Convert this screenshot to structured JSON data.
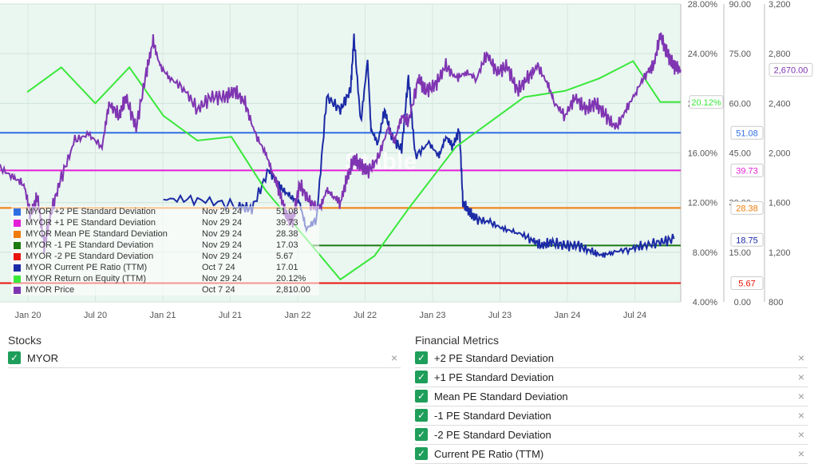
{
  "chart_data": {
    "type": "line",
    "x_ticks": [
      "Jan 20",
      "Jul 20",
      "Jan 21",
      "Jul 21",
      "Jan 22",
      "Jul 22",
      "Jan 23",
      "Jul 23",
      "Jan 24",
      "Jul 24"
    ],
    "axes": {
      "roe_pct": {
        "ticks": [
          "4.00%",
          "8.00%",
          "12.00%",
          "16.00%",
          "20.00%",
          "24.00%",
          "28.00%"
        ],
        "range": [
          4,
          28
        ]
      },
      "pe": {
        "ticks": [
          "0.00",
          "15.00",
          "30.00",
          "45.00",
          "60.00",
          "75.00",
          "90.00"
        ],
        "range": [
          0,
          90
        ]
      },
      "price": {
        "ticks": [
          "800",
          "1,200",
          "1,600",
          "2,000",
          "2,400",
          "2,800",
          "3,200"
        ],
        "range": [
          800,
          3200
        ]
      }
    },
    "series": [
      {
        "name": "MYOR +2 PE Standard Deviation",
        "color": "#2f6fe4",
        "axis": "pe",
        "date": "Nov 29 24",
        "value": "51.08",
        "flat": 51.08,
        "badge": "51.08"
      },
      {
        "name": "MYOR +1 PE Standard Deviation",
        "color": "#e41fd8",
        "axis": "pe",
        "date": "Nov 29 24",
        "value": "39.73",
        "flat": 39.73,
        "badge": "39.73"
      },
      {
        "name": "MYOR Mean PE Standard Deviation",
        "color": "#f07d0b",
        "axis": "pe",
        "date": "Nov 29 24",
        "value": "28.38",
        "flat": 28.38,
        "badge": "28.38"
      },
      {
        "name": "MYOR -1 PE Standard Deviation",
        "color": "#1b7a12",
        "axis": "pe",
        "date": "Nov 29 24",
        "value": "17.03",
        "flat": 17.03,
        "badge": ""
      },
      {
        "name": "MYOR -2 PE Standard Deviation",
        "color": "#e8130c",
        "axis": "pe",
        "date": "Nov 29 24",
        "value": "5.67",
        "flat": 5.67,
        "badge": "5.67"
      },
      {
        "name": "MYOR Current PE Ratio (TTM)",
        "color": "#1b2aa6",
        "axis": "pe",
        "date": "Oct 7 24",
        "value": "17.01",
        "badge": "18.75",
        "points": [
          [
            0.0,
            0
          ],
          [
            0.21,
            0
          ],
          [
            0.24,
            31
          ],
          [
            0.29,
            31
          ],
          [
            0.35,
            29
          ],
          [
            0.37,
            28
          ],
          [
            0.395,
            40
          ],
          [
            0.41,
            35
          ],
          [
            0.425,
            32
          ],
          [
            0.44,
            30
          ],
          [
            0.45,
            22
          ],
          [
            0.465,
            25
          ],
          [
            0.48,
            62
          ],
          [
            0.5,
            58
          ],
          [
            0.515,
            64
          ],
          [
            0.52,
            80
          ],
          [
            0.53,
            54
          ],
          [
            0.54,
            73
          ],
          [
            0.545,
            52
          ],
          [
            0.555,
            48
          ],
          [
            0.565,
            58
          ],
          [
            0.575,
            50
          ],
          [
            0.59,
            46
          ],
          [
            0.6,
            68
          ],
          [
            0.61,
            44
          ],
          [
            0.63,
            48
          ],
          [
            0.645,
            44
          ],
          [
            0.655,
            50
          ],
          [
            0.665,
            47
          ],
          [
            0.675,
            52
          ],
          [
            0.68,
            30
          ],
          [
            0.69,
            27
          ],
          [
            0.7,
            25
          ],
          [
            0.72,
            24
          ],
          [
            0.74,
            22
          ],
          [
            0.76,
            21
          ],
          [
            0.78,
            19
          ],
          [
            0.795,
            17
          ],
          [
            0.81,
            18
          ],
          [
            0.83,
            17
          ],
          [
            0.85,
            17
          ],
          [
            0.87,
            15
          ],
          [
            0.885,
            14
          ],
          [
            0.9,
            15
          ],
          [
            0.925,
            16
          ],
          [
            0.945,
            17
          ],
          [
            0.97,
            18
          ],
          [
            0.99,
            19
          ]
        ]
      },
      {
        "name": "MYOR Return on Equity (TTM)",
        "color": "#39e83a",
        "axis": "roe_pct",
        "date": "Nov 29 24",
        "value": "20.12%",
        "badge": "20.12%",
        "points": [
          [
            0.04,
            20.9
          ],
          [
            0.09,
            22.9
          ],
          [
            0.14,
            20.0
          ],
          [
            0.19,
            22.9
          ],
          [
            0.24,
            19.0
          ],
          [
            0.29,
            17.0
          ],
          [
            0.34,
            17.3
          ],
          [
            0.39,
            13.0
          ],
          [
            0.5,
            5.8
          ],
          [
            0.55,
            7.7
          ],
          [
            0.6,
            11.5
          ],
          [
            0.67,
            16.5
          ],
          [
            0.77,
            20.5
          ],
          [
            0.83,
            21.0
          ],
          [
            0.88,
            22.0
          ],
          [
            0.93,
            23.4
          ],
          [
            0.97,
            20.1
          ],
          [
            1.0,
            20.1
          ]
        ]
      },
      {
        "name": "MYOR Price",
        "color": "#7f35b2",
        "axis": "price",
        "date": "Oct 7 24",
        "value": "2,810.00",
        "badge": "2,670.00",
        "points": [
          [
            0.0,
            1880
          ],
          [
            0.02,
            1800
          ],
          [
            0.035,
            1750
          ],
          [
            0.045,
            1500
          ],
          [
            0.055,
            1650
          ],
          [
            0.065,
            1250
          ],
          [
            0.075,
            1520
          ],
          [
            0.09,
            1800
          ],
          [
            0.11,
            2100
          ],
          [
            0.13,
            2150
          ],
          [
            0.15,
            2050
          ],
          [
            0.16,
            2400
          ],
          [
            0.175,
            2300
          ],
          [
            0.185,
            2450
          ],
          [
            0.2,
            2200
          ],
          [
            0.215,
            2650
          ],
          [
            0.225,
            2900
          ],
          [
            0.235,
            2700
          ],
          [
            0.25,
            2600
          ],
          [
            0.27,
            2520
          ],
          [
            0.29,
            2350
          ],
          [
            0.31,
            2450
          ],
          [
            0.33,
            2450
          ],
          [
            0.345,
            2500
          ],
          [
            0.36,
            2400
          ],
          [
            0.375,
            2150
          ],
          [
            0.39,
            2000
          ],
          [
            0.4,
            1850
          ],
          [
            0.41,
            1700
          ],
          [
            0.42,
            1500
          ],
          [
            0.43,
            1450
          ],
          [
            0.44,
            1750
          ],
          [
            0.455,
            1600
          ],
          [
            0.47,
            1550
          ],
          [
            0.48,
            1700
          ],
          [
            0.49,
            1650
          ],
          [
            0.5,
            1600
          ],
          [
            0.51,
            1800
          ],
          [
            0.52,
            1950
          ],
          [
            0.53,
            1900
          ],
          [
            0.54,
            1850
          ],
          [
            0.555,
            1950
          ],
          [
            0.57,
            2200
          ],
          [
            0.58,
            2100
          ],
          [
            0.59,
            2300
          ],
          [
            0.6,
            2250
          ],
          [
            0.615,
            2600
          ],
          [
            0.625,
            2500
          ],
          [
            0.64,
            2550
          ],
          [
            0.655,
            2700
          ],
          [
            0.67,
            2600
          ],
          [
            0.685,
            2650
          ],
          [
            0.7,
            2600
          ],
          [
            0.715,
            2800
          ],
          [
            0.73,
            2650
          ],
          [
            0.745,
            2700
          ],
          [
            0.76,
            2500
          ],
          [
            0.775,
            2600
          ],
          [
            0.79,
            2700
          ],
          [
            0.805,
            2550
          ],
          [
            0.815,
            2400
          ],
          [
            0.83,
            2300
          ],
          [
            0.845,
            2450
          ],
          [
            0.86,
            2350
          ],
          [
            0.875,
            2400
          ],
          [
            0.89,
            2300
          ],
          [
            0.905,
            2200
          ],
          [
            0.92,
            2350
          ],
          [
            0.935,
            2500
          ],
          [
            0.95,
            2650
          ],
          [
            0.96,
            2700
          ],
          [
            0.97,
            2950
          ],
          [
            0.98,
            2800
          ],
          [
            0.99,
            2700
          ],
          [
            1.0,
            2670
          ]
        ]
      }
    ]
  },
  "watermark": "Stable",
  "stocks": {
    "title": "Stocks",
    "items": [
      "MYOR"
    ]
  },
  "metrics": {
    "title": "Financial Metrics",
    "items": [
      "+2 PE Standard Deviation",
      "+1 PE Standard Deviation",
      "Mean PE Standard Deviation",
      "-1 PE Standard Deviation",
      "-2 PE Standard Deviation",
      "Current PE Ratio (TTM)"
    ]
  },
  "icons": {
    "check": "check-icon",
    "remove": "close-icon"
  }
}
